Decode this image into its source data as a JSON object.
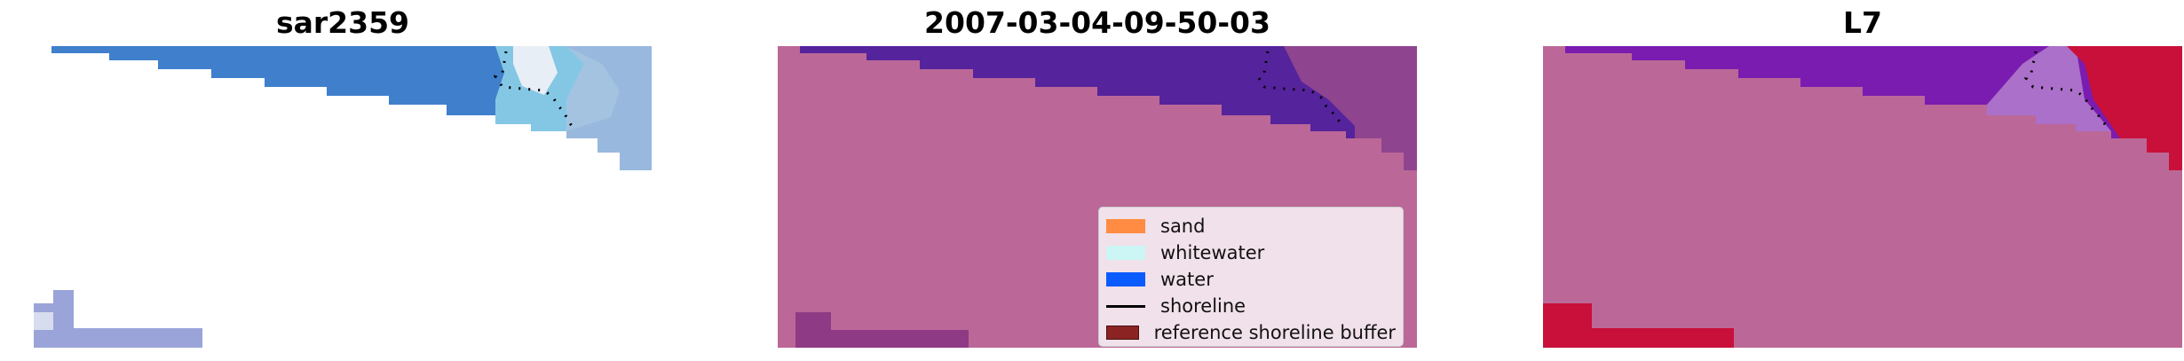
{
  "panels": [
    {
      "title": "sar2359"
    },
    {
      "title": "2007-03-04-09-50-03"
    },
    {
      "title": "L7"
    }
  ],
  "legend": {
    "items": [
      {
        "label": "sand",
        "color": "#ff8c42",
        "kind": "patch"
      },
      {
        "label": "whitewater",
        "color": "#ccf5f5",
        "kind": "patch"
      },
      {
        "label": "water",
        "color": "#0a5cff",
        "kind": "patch"
      },
      {
        "label": "shoreline",
        "color": "#000000",
        "kind": "line"
      },
      {
        "label": "reference shoreline buffer",
        "color": "#8b2323",
        "kind": "patch"
      }
    ]
  },
  "colors": {
    "sand_overlay": "#bb6898",
    "water_overlay": "#55239c",
    "ndwi_high": "#c8103a",
    "ndwi_low": "#7a1cb0",
    "rgb_water": "#3f7fcc",
    "rgb_whitewater": "#e7eef6"
  }
}
